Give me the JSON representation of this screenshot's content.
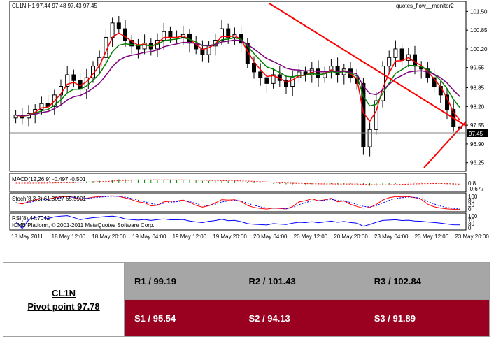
{
  "chart_data": {
    "type": "candlestick",
    "symbol_header": "CL1N,H1  97.44 97.48 97.43 97.45",
    "indicator_name": "quotes_flow__monitor2",
    "last_price_label": "97.45",
    "ylim": [
      96.0,
      101.8
    ],
    "price_ticks": [
      "101.50",
      "100.85",
      "100.20",
      "99.55",
      "98.85",
      "98.20",
      "97.55",
      "96.90",
      "96.25"
    ],
    "price_tick_values": [
      101.5,
      100.85,
      100.2,
      99.55,
      98.85,
      98.2,
      97.55,
      96.9,
      96.25
    ],
    "x_labels": [
      "18 May 2011",
      "18 May 12:00",
      "18 May 20:00",
      "19 May 04:00",
      "19 May 12:00",
      "19 May 20:00",
      "20 May 04:00",
      "20 May 12:00",
      "20 May 20:00",
      "23 May 04:00",
      "23 May 12:00",
      "23 May 20:00"
    ],
    "bars": 70,
    "close": [
      97.9,
      97.8,
      97.95,
      98.1,
      98.3,
      98.2,
      98.6,
      98.9,
      99.3,
      99.1,
      98.8,
      99.2,
      99.6,
      99.9,
      100.6,
      101.1,
      100.9,
      100.5,
      100.3,
      100.2,
      100.4,
      100.2,
      100.5,
      100.8,
      100.6,
      100.6,
      100.7,
      100.4,
      100.2,
      100.0,
      100.3,
      100.5,
      100.9,
      100.6,
      100.7,
      100.4,
      99.7,
      99.4,
      99.2,
      99.0,
      99.3,
      99.1,
      98.9,
      99.2,
      99.4,
      99.3,
      99.5,
      99.2,
      99.4,
      99.6,
      99.3,
      99.5,
      99.2,
      99.0,
      96.8,
      97.4,
      98.4,
      99.6,
      99.9,
      100.2,
      99.8,
      100.0,
      99.6,
      99.5,
      99.2,
      98.9,
      98.6,
      98.1,
      97.5,
      97.45
    ],
    "ma_fast_color": "#ff0000",
    "ma_mid_color": "#008000",
    "ma_slow_color": "#800080",
    "trendline_color": "#ff0000",
    "macd_label": "MACD(12,26,9) -0.497 -0.501",
    "macd_ticks": [
      "0.8",
      "-0.677"
    ],
    "stoch_label": "Stoch(8,3,3) 61.3027 65.5901",
    "stoch_ticks": [
      "100",
      "80",
      "20",
      "0"
    ],
    "rsi_label": "RSI(8) 44.7042",
    "rsi_ticks": [
      "100",
      "70",
      "30",
      "0"
    ],
    "copyright": "ICMB Platform, © 2001-2011 MetaQuotes Software Corp."
  },
  "pivot": {
    "symbol": "CL1N",
    "pivot_label": "Pivot point 97.78",
    "r1": "R1 / 99.19",
    "r2": "R2 / 101.43",
    "r3": "R3 / 102.84",
    "s1": "S1 / 95.54",
    "s2": "S2 /  94.13",
    "s3": "S3 /  91.89"
  }
}
